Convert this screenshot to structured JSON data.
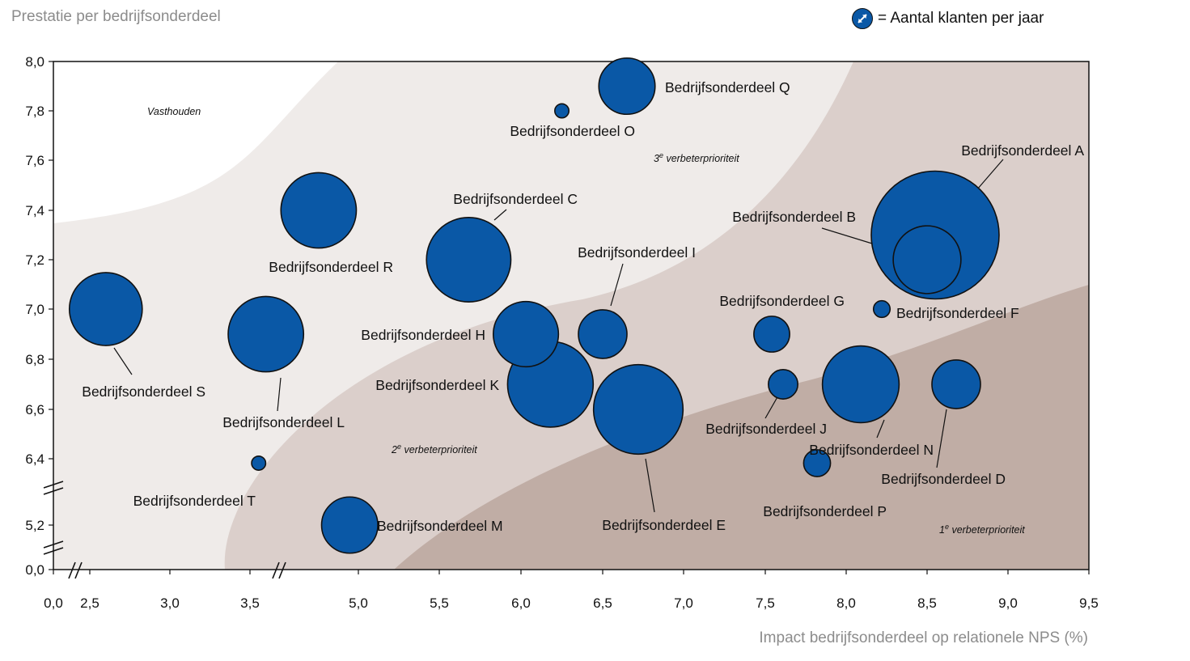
{
  "title": "Prestatie per bedrijfsonderdeel",
  "legend": {
    "icon": "expand-arrows-icon",
    "label": "= Aantal  klanten per jaar"
  },
  "xlabel": "Impact bedrijfsonderdeel op relationele NPS (%)",
  "colors": {
    "bubble": "#0a58a6",
    "zone_light": "#efebe9",
    "zone_mid": "#dbcfcb",
    "zone_dark": "#c0ada5"
  },
  "chart_data": {
    "type": "scatter",
    "title": "Prestatie per bedrijfsonderdeel",
    "xlabel": "Impact bedrijfsonderdeel op relationele NPS (%)",
    "ylabel": "",
    "x_ticks": [
      "0,0",
      "2,5",
      "3,0",
      "3,5",
      "5,0",
      "5,5",
      "6,0",
      "6,5",
      "7,0",
      "7,5",
      "8,0",
      "8,5",
      "9,0",
      "9,5"
    ],
    "y_ticks": [
      "0,0",
      "5,2",
      "6,4",
      "6,6",
      "6,8",
      "7,0",
      "7,2",
      "7,4",
      "7,6",
      "7,8",
      "8,0"
    ],
    "axis_breaks": [
      "x between 0,0 and 2,5",
      "x between 3,5 and 5,0",
      "y between 0,0 and 5,2",
      "y between 5,2 and 6,4"
    ],
    "zones": [
      "Vasthouden",
      "3e verbeterprioriteit",
      "2e verbeterprioriteit",
      "1e verbeterprioriteit"
    ],
    "points": [
      {
        "name": "Bedrijfsonderdeel A",
        "x": 8.55,
        "y": 7.3,
        "size": 1.0
      },
      {
        "name": "Bedrijfsonderdeel B",
        "x": 8.5,
        "y": 7.2,
        "size": 0.53
      },
      {
        "name": "Bedrijfsonderdeel C",
        "x": 5.68,
        "y": 7.2,
        "size": 0.66
      },
      {
        "name": "Bedrijfsonderdeel D",
        "x": 8.68,
        "y": 6.7,
        "size": 0.38
      },
      {
        "name": "Bedrijfsonderdeel E",
        "x": 6.72,
        "y": 6.6,
        "size": 0.7
      },
      {
        "name": "Bedrijfsonderdeel F",
        "x": 8.22,
        "y": 7.0,
        "size": 0.13
      },
      {
        "name": "Bedrijfsonderdeel G",
        "x": 7.54,
        "y": 6.9,
        "size": 0.28
      },
      {
        "name": "Bedrijfsonderdeel H",
        "x": 6.03,
        "y": 6.9,
        "size": 0.51
      },
      {
        "name": "Bedrijfsonderdeel I",
        "x": 6.5,
        "y": 6.9,
        "size": 0.38
      },
      {
        "name": "Bedrijfsonderdeel J",
        "x": 7.61,
        "y": 6.7,
        "size": 0.23
      },
      {
        "name": "Bedrijfsonderdeel K",
        "x": 6.18,
        "y": 6.7,
        "size": 0.67
      },
      {
        "name": "Bedrijfsonderdeel L",
        "x": 3.72,
        "y": 6.9,
        "size": 0.59
      },
      {
        "name": "Bedrijfsonderdeel M",
        "x": 4.88,
        "y": 5.2,
        "size": 0.44
      },
      {
        "name": "Bedrijfsonderdeel N",
        "x": 8.09,
        "y": 6.7,
        "size": 0.6
      },
      {
        "name": "Bedrijfsonderdeel O",
        "x": 6.25,
        "y": 7.8,
        "size": 0.11
      },
      {
        "name": "Bedrijfsonderdeel P",
        "x": 7.82,
        "y": 6.32,
        "size": 0.21
      },
      {
        "name": "Bedrijfsonderdeel Q",
        "x": 6.65,
        "y": 7.9,
        "size": 0.44
      },
      {
        "name": "Bedrijfsonderdeel R",
        "x": 4.45,
        "y": 7.4,
        "size": 0.59
      },
      {
        "name": "Bedrijfsonderdeel S",
        "x": 2.6,
        "y": 7.0,
        "size": 0.57
      },
      {
        "name": "Bedrijfsonderdeel T",
        "x": 3.62,
        "y": 6.32,
        "size": 0.11
      }
    ]
  }
}
